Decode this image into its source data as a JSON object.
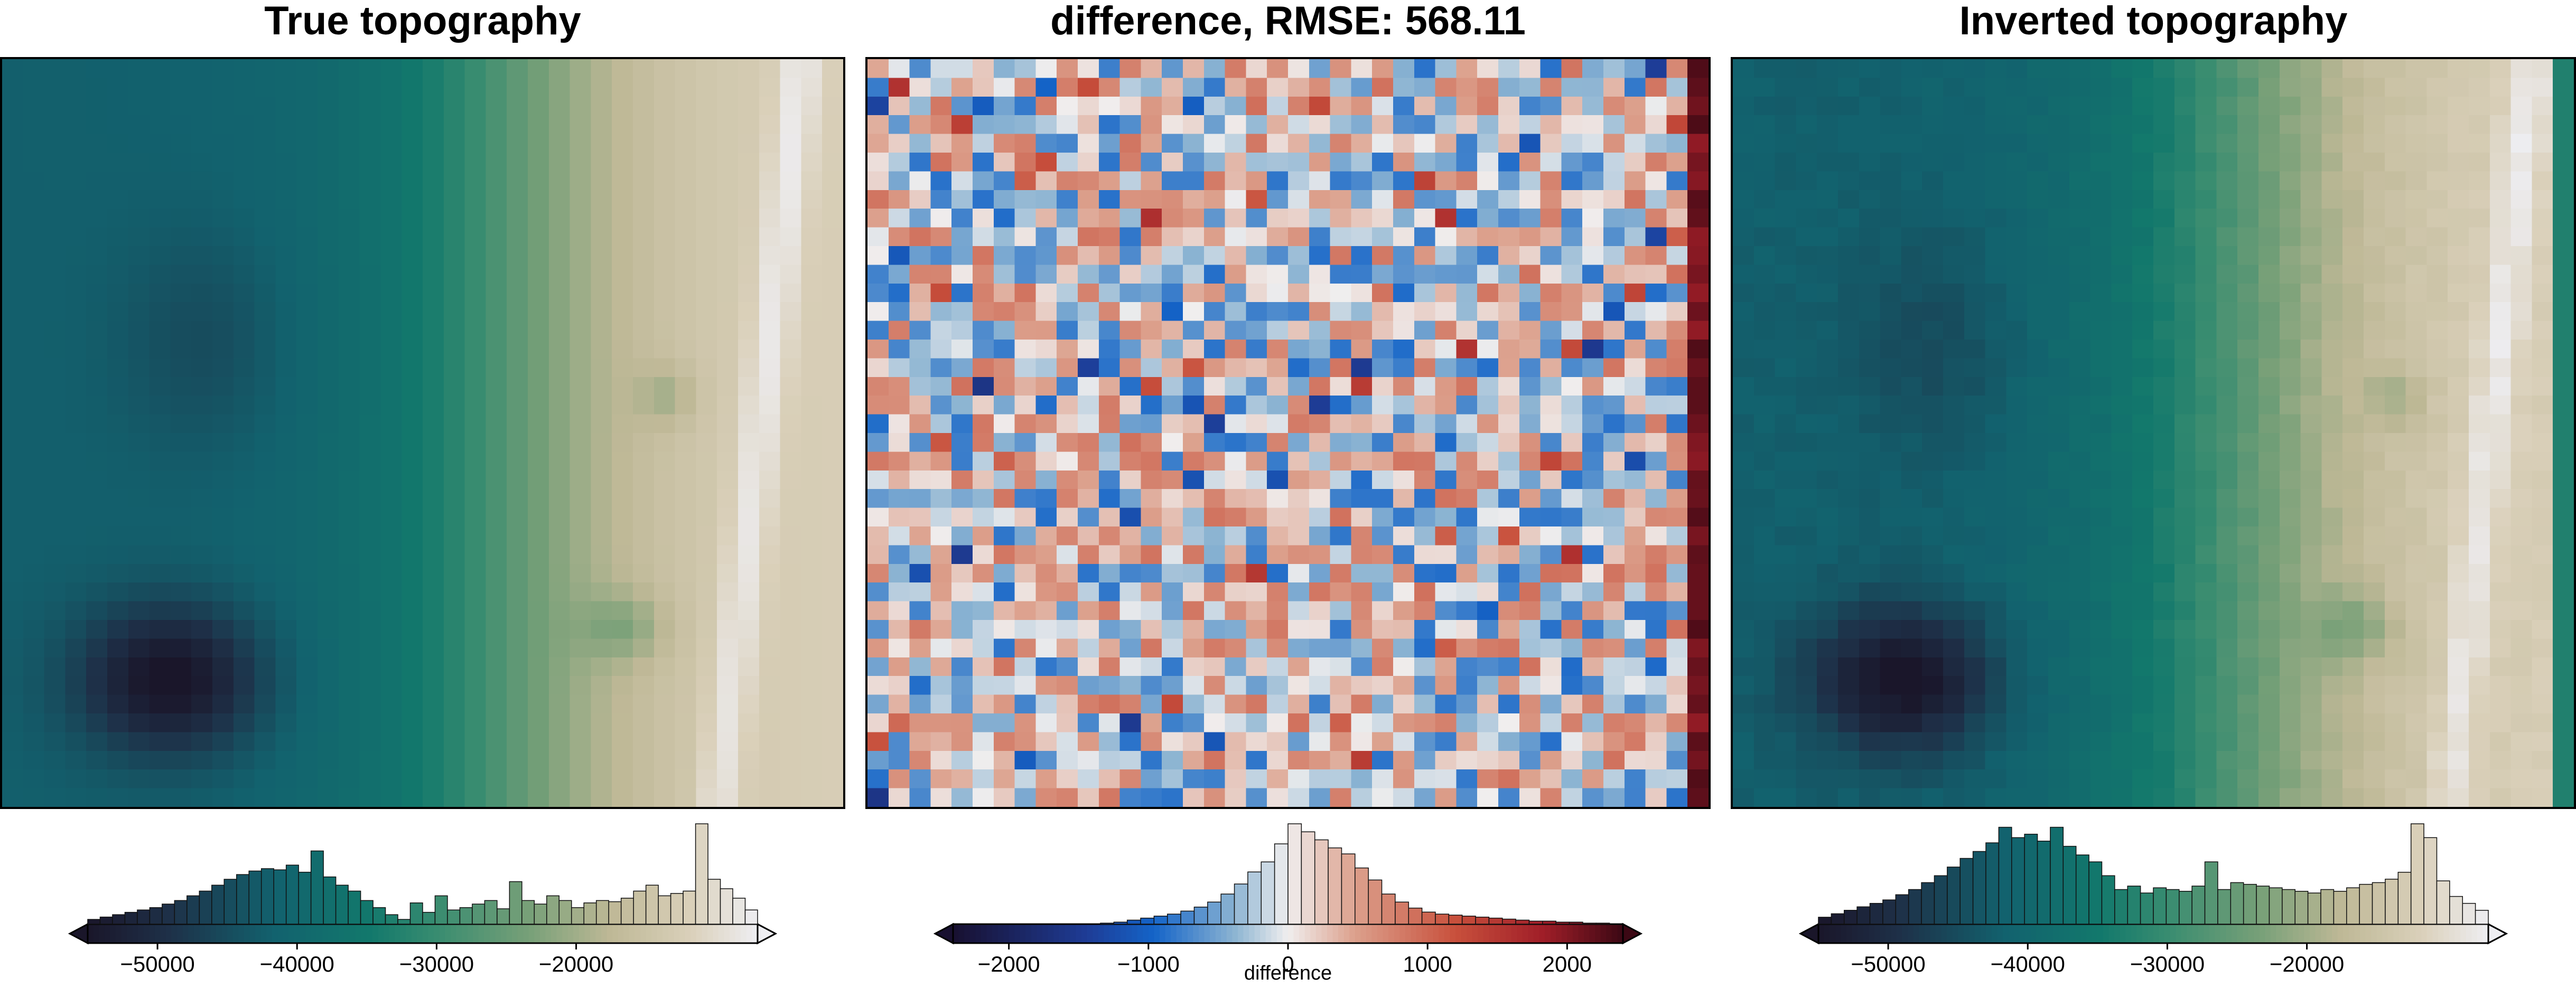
{
  "chart_data": [
    {
      "type": "heatmap",
      "title": "True topography",
      "field": "true",
      "grid": {
        "cols": 40,
        "rows": 40
      },
      "colormap": "topography",
      "clim": [
        -55000,
        -7000
      ],
      "colorbar": {
        "ticks": [
          -50000,
          -40000,
          -30000,
          -20000
        ],
        "tick_labels": [
          "−50000",
          "−40000",
          "−30000",
          "−20000"
        ],
        "label": "",
        "extend": "both",
        "histogram": [
          4,
          6,
          8,
          10,
          12,
          14,
          17,
          20,
          24,
          28,
          33,
          38,
          42,
          45,
          47,
          46,
          50,
          44,
          62,
          40,
          33,
          28,
          20,
          14,
          8,
          4,
          18,
          10,
          24,
          12,
          14,
          17,
          20,
          13,
          36,
          20,
          17,
          24,
          20,
          14,
          18,
          20,
          19,
          22,
          28,
          33,
          24,
          26,
          28,
          85,
          38,
          30,
          22,
          12
        ]
      }
    },
    {
      "type": "heatmap",
      "title": "difference, RMSE: 568.11",
      "field": "difference",
      "grid": {
        "cols": 40,
        "rows": 40
      },
      "colormap": "balance",
      "clim": [
        -2400,
        2400
      ],
      "colorbar": {
        "ticks": [
          -2000,
          -1000,
          0,
          1000,
          2000
        ],
        "tick_labels": [
          "−2000",
          "−1000",
          "0",
          "1000",
          "2000"
        ],
        "label": "difference",
        "extend": "both",
        "histogram": [
          0,
          0,
          0,
          0,
          0,
          0,
          0,
          0,
          0,
          0,
          0,
          1,
          2,
          4,
          6,
          8,
          10,
          13,
          17,
          22,
          30,
          40,
          52,
          62,
          80,
          100,
          92,
          84,
          76,
          70,
          56,
          44,
          30,
          22,
          16,
          12,
          10,
          9,
          8,
          7,
          6,
          5,
          4,
          3,
          3,
          2,
          2,
          1,
          1,
          0
        ]
      }
    },
    {
      "type": "heatmap",
      "title": "Inverted topography",
      "field": "inverted",
      "grid": {
        "cols": 40,
        "rows": 40
      },
      "colormap": "topography",
      "clim": [
        -55000,
        -7000
      ],
      "colorbar": {
        "ticks": [
          -50000,
          -40000,
          -30000,
          -20000
        ],
        "tick_labels": [
          "−50000",
          "−40000",
          "−30000",
          "−20000"
        ],
        "label": "",
        "extend": "both",
        "histogram": [
          4,
          6,
          8,
          10,
          12,
          14,
          17,
          20,
          24,
          28,
          33,
          38,
          42,
          47,
          56,
          50,
          52,
          48,
          56,
          45,
          40,
          36,
          28,
          20,
          22,
          18,
          21,
          20,
          19,
          22,
          36,
          20,
          24,
          23,
          22,
          21,
          20,
          19,
          18,
          20,
          19,
          21,
          23,
          24,
          26,
          30,
          58,
          50,
          25,
          16,
          12,
          8
        ]
      }
    }
  ]
}
